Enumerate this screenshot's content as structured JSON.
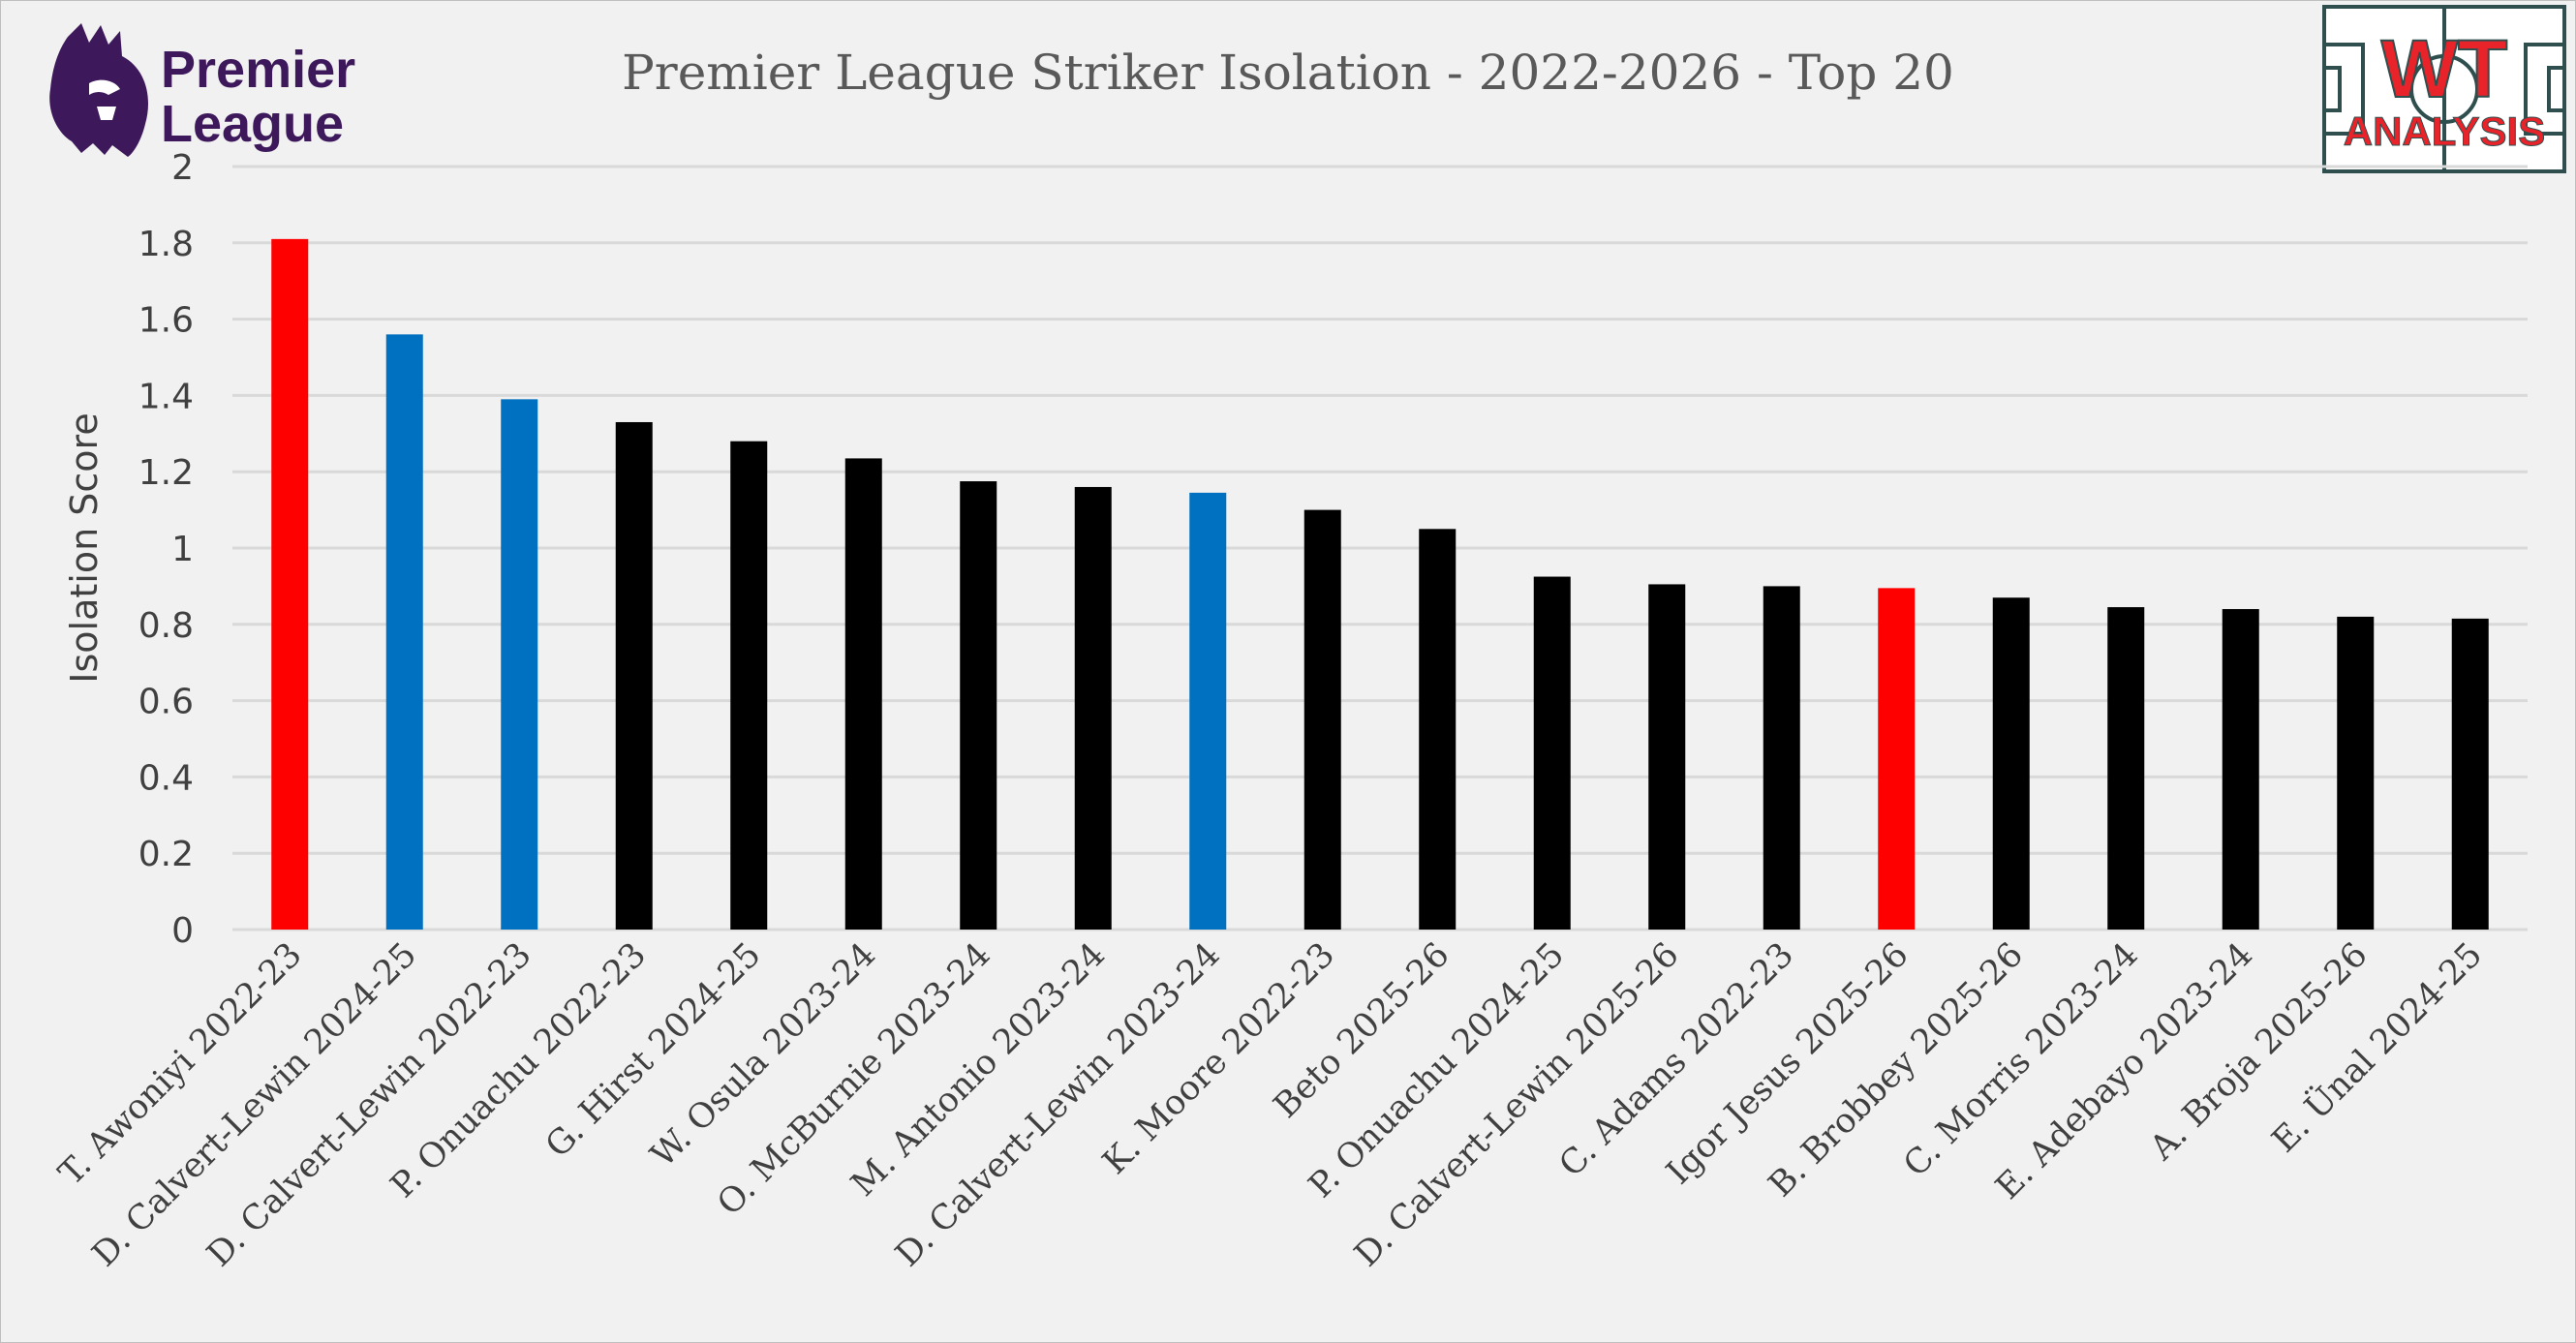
{
  "logos": {
    "league": {
      "line1": "Premier",
      "line2": "League",
      "icon": "lion-crest-icon",
      "color": "#3d195b"
    },
    "badge": {
      "line1": "WT",
      "line2": "ANALYSIS",
      "icon": "pitch-badge-icon",
      "primary_color": "#e8232a",
      "frame_color": "#2f4f4f"
    }
  },
  "chart_data": {
    "type": "bar",
    "title": "Premier League Striker Isolation - 2022-2026 - Top 20",
    "ylabel": "Isolation Score",
    "xlabel": "",
    "ylim": [
      0,
      2
    ],
    "yticks": [
      "0",
      "0.2",
      "0.4",
      "0.6",
      "0.8",
      "1",
      "1.2",
      "1.4",
      "1.6",
      "1.8",
      "2"
    ],
    "grid": true,
    "categories": [
      "T. Awoniyi 2022-23",
      "D. Calvert-Lewin 2024-25",
      "D. Calvert-Lewin 2022-23",
      "P. Onuachu 2022-23",
      "G. Hirst 2024-25",
      "W. Osula 2023-24",
      "O. McBurnie 2023-24",
      "M. Antonio 2023-24",
      "D. Calvert-Lewin 2023-24",
      "K. Moore 2022-23",
      "Beto 2025-26",
      "P. Onuachu 2024-25",
      "D. Calvert-Lewin 2025-26",
      "C. Adams 2022-23",
      "Igor Jesus 2025-26",
      "B. Brobbey 2025-26",
      "C. Morris 2023-24",
      "E. Adebayo 2023-24",
      "A. Broja 2025-26",
      "E. Ünal 2024-25"
    ],
    "values": [
      1.81,
      1.56,
      1.39,
      1.33,
      1.28,
      1.235,
      1.175,
      1.16,
      1.145,
      1.1,
      1.05,
      0.925,
      0.905,
      0.9,
      0.895,
      0.87,
      0.845,
      0.84,
      0.82,
      0.815
    ],
    "bar_colors": [
      "#ff0000",
      "#0070c0",
      "#0070c0",
      "#000000",
      "#000000",
      "#000000",
      "#000000",
      "#000000",
      "#0070c0",
      "#000000",
      "#000000",
      "#000000",
      "#000000",
      "#000000",
      "#ff0000",
      "#000000",
      "#000000",
      "#000000",
      "#000000",
      "#000000"
    ],
    "grid_color": "#d9d9d9",
    "background": "#f1f1f1"
  }
}
